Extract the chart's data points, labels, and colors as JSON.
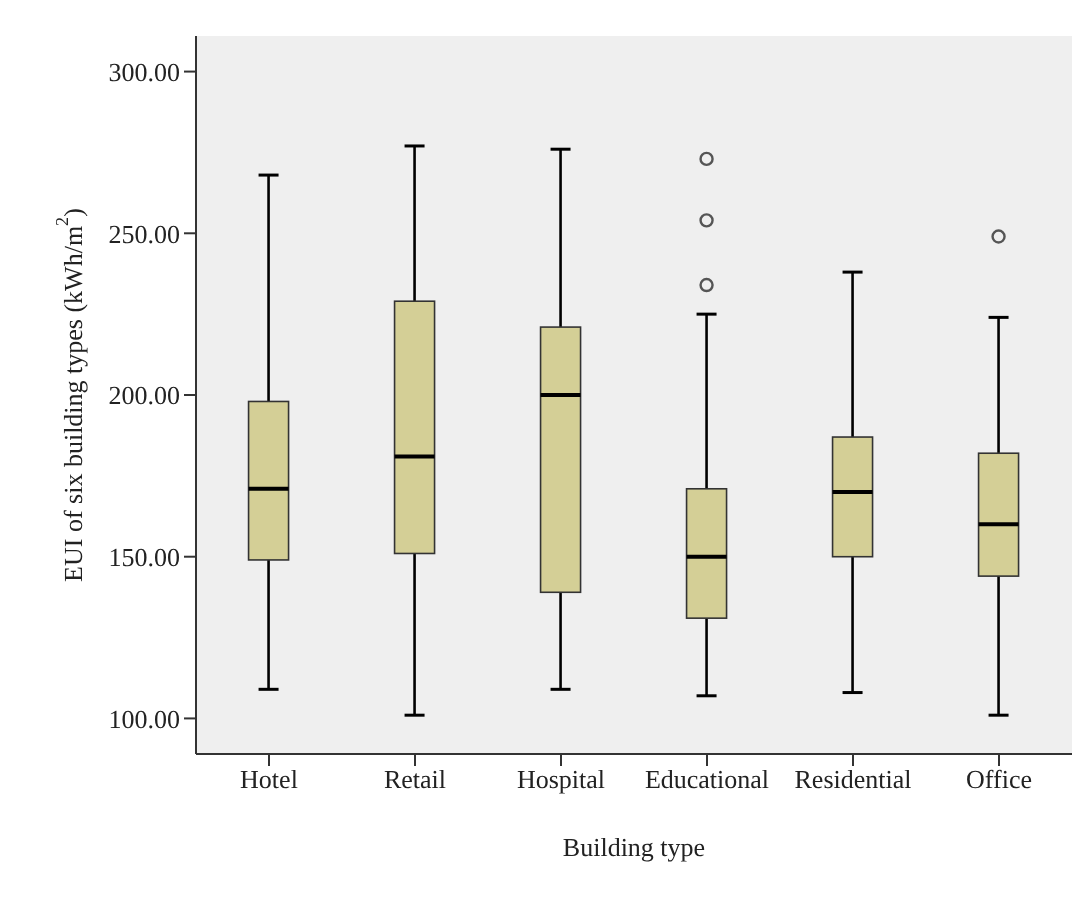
{
  "chart_data": {
    "type": "box",
    "xlabel": "Building type",
    "ylabel": "EUI  of six building types (kWh/m$^{2}$)",
    "categories": [
      "Hotel",
      "Retail",
      "Hospital",
      "Educational",
      "Residential",
      "Office"
    ],
    "color": "#d4cf96",
    "boxes": [
      {
        "low": 109,
        "q1": 149,
        "median": 171,
        "q3": 198,
        "high": 268
      },
      {
        "low": 101,
        "q1": 151,
        "median": 181,
        "q3": 229,
        "high": 277
      },
      {
        "low": 109,
        "q1": 139,
        "median": 200,
        "q3": 221,
        "high": 276
      },
      {
        "low": 107,
        "q1": 131,
        "median": 150,
        "q3": 171,
        "high": 225,
        "outliers": [
          234,
          254,
          273
        ]
      },
      {
        "low": 108,
        "q1": 150,
        "median": 170,
        "q3": 187,
        "high": 238
      },
      {
        "low": 101,
        "q1": 144,
        "median": 160,
        "q3": 182,
        "high": 224,
        "outliers": [
          249
        ]
      }
    ],
    "ylim": [
      89,
      311
    ],
    "yticks": [
      {
        "value": 100,
        "label": "100.00"
      },
      {
        "value": 150,
        "label": "150.00"
      },
      {
        "value": 200,
        "label": "200.00"
      },
      {
        "value": 250,
        "label": "250.00"
      },
      {
        "value": 300,
        "label": "300.00"
      }
    ],
    "grid": false
  }
}
